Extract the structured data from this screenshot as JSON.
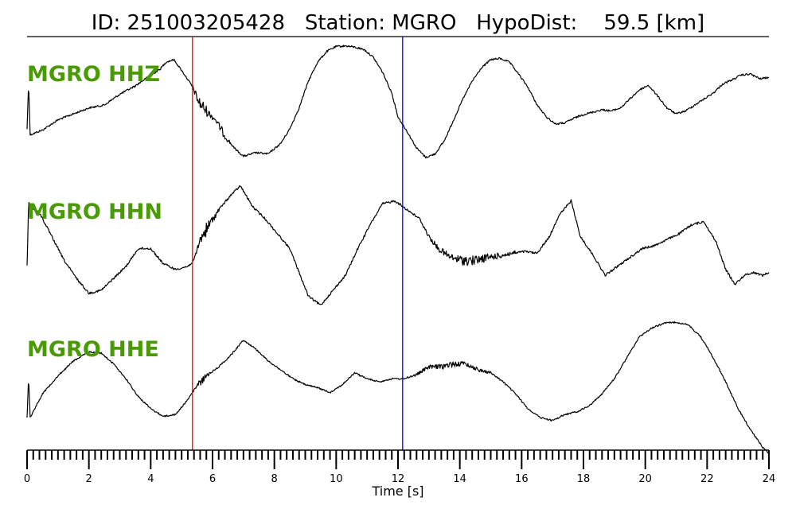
{
  "title": {
    "id_label": "ID:",
    "id_value": "251003205428",
    "station_label": "Station:",
    "station_value": "MGRO",
    "dist_label": "HypoDist:",
    "dist_value": "59.5",
    "dist_unit": "[km]"
  },
  "chart_data": {
    "type": "line",
    "xlabel": "Time [s]",
    "xlim": [
      0,
      24
    ],
    "x_ticks": [
      0,
      2,
      4,
      6,
      8,
      10,
      12,
      14,
      16,
      18,
      20,
      22,
      24
    ],
    "minor_tick_step": 0.2,
    "grid": false,
    "markers": [
      {
        "time": 5.35,
        "color": "#ff0000"
      },
      {
        "time": 12.15,
        "color": "#0000ff"
      }
    ],
    "label_color": "#4a9a06",
    "series": [
      {
        "name": "MGRO HHZ",
        "noise": 1.2,
        "points": [
          [
            0,
            -0.4
          ],
          [
            0.05,
            0.4
          ],
          [
            0.1,
            -0.5
          ],
          [
            0.5,
            -0.42
          ],
          [
            1.0,
            -0.25
          ],
          [
            1.5,
            -0.15
          ],
          [
            2.0,
            -0.05
          ],
          [
            2.5,
            0.0
          ],
          [
            3.0,
            0.18
          ],
          [
            3.5,
            0.32
          ],
          [
            4.0,
            0.5
          ],
          [
            4.3,
            0.6
          ],
          [
            4.5,
            0.72
          ],
          [
            4.75,
            0.76
          ],
          [
            5.0,
            0.58
          ],
          [
            5.3,
            0.35
          ],
          [
            5.4,
            0.25
          ],
          [
            5.55,
            0.05
          ],
          [
            5.8,
            -0.1
          ],
          [
            6.1,
            -0.25
          ],
          [
            6.4,
            -0.52
          ],
          [
            6.7,
            -0.72
          ],
          [
            7.0,
            -0.86
          ],
          [
            7.4,
            -0.8
          ],
          [
            7.8,
            -0.82
          ],
          [
            8.2,
            -0.65
          ],
          [
            8.5,
            -0.4
          ],
          [
            8.8,
            -0.05
          ],
          [
            9.1,
            0.4
          ],
          [
            9.4,
            0.72
          ],
          [
            9.7,
            0.9
          ],
          [
            10.0,
            0.98
          ],
          [
            10.3,
            0.99
          ],
          [
            10.6,
            0.97
          ],
          [
            10.9,
            0.93
          ],
          [
            11.2,
            0.8
          ],
          [
            11.5,
            0.55
          ],
          [
            11.8,
            0.2
          ],
          [
            12.0,
            -0.2
          ],
          [
            12.3,
            -0.45
          ],
          [
            12.6,
            -0.72
          ],
          [
            12.9,
            -0.88
          ],
          [
            13.2,
            -0.82
          ],
          [
            13.5,
            -0.6
          ],
          [
            13.8,
            -0.25
          ],
          [
            14.1,
            0.1
          ],
          [
            14.4,
            0.4
          ],
          [
            14.7,
            0.62
          ],
          [
            15.0,
            0.76
          ],
          [
            15.3,
            0.78
          ],
          [
            15.6,
            0.72
          ],
          [
            15.9,
            0.52
          ],
          [
            16.2,
            0.3
          ],
          [
            16.5,
            0.0
          ],
          [
            16.8,
            -0.2
          ],
          [
            17.1,
            -0.32
          ],
          [
            17.4,
            -0.3
          ],
          [
            17.7,
            -0.22
          ],
          [
            18.0,
            -0.16
          ],
          [
            18.3,
            -0.12
          ],
          [
            18.6,
            -0.08
          ],
          [
            18.9,
            -0.1
          ],
          [
            19.2,
            -0.05
          ],
          [
            19.5,
            0.1
          ],
          [
            19.8,
            0.25
          ],
          [
            20.1,
            0.33
          ],
          [
            20.4,
            0.15
          ],
          [
            20.7,
            -0.05
          ],
          [
            21.0,
            -0.15
          ],
          [
            21.3,
            -0.1
          ],
          [
            21.6,
            0.0
          ],
          [
            21.9,
            0.1
          ],
          [
            22.2,
            0.2
          ],
          [
            22.5,
            0.35
          ],
          [
            22.8,
            0.42
          ],
          [
            23.1,
            0.5
          ],
          [
            23.4,
            0.52
          ],
          [
            23.7,
            0.44
          ],
          [
            24.0,
            0.46
          ]
        ],
        "bursts": [
          [
            5.35,
            6.0,
            8
          ],
          [
            6.0,
            6.6,
            4
          ]
        ]
      },
      {
        "name": "MGRO HHN",
        "noise": 1.4,
        "points": [
          [
            0,
            -0.4
          ],
          [
            0.05,
            0.7
          ],
          [
            0.1,
            0.6
          ],
          [
            0.4,
            0.5
          ],
          [
            0.8,
            0.1
          ],
          [
            1.2,
            -0.3
          ],
          [
            1.6,
            -0.6
          ],
          [
            2.0,
            -0.85
          ],
          [
            2.4,
            -0.8
          ],
          [
            2.8,
            -0.6
          ],
          [
            3.2,
            -0.4
          ],
          [
            3.6,
            -0.1
          ],
          [
            4.0,
            -0.1
          ],
          [
            4.4,
            -0.35
          ],
          [
            4.8,
            -0.45
          ],
          [
            5.2,
            -0.4
          ],
          [
            5.4,
            -0.3
          ],
          [
            5.6,
            0.05
          ],
          [
            5.9,
            0.3
          ],
          [
            6.2,
            0.55
          ],
          [
            6.6,
            0.8
          ],
          [
            6.9,
            0.95
          ],
          [
            7.3,
            0.6
          ],
          [
            7.7,
            0.4
          ],
          [
            8.1,
            0.15
          ],
          [
            8.5,
            -0.1
          ],
          [
            8.8,
            -0.5
          ],
          [
            9.1,
            -0.9
          ],
          [
            9.5,
            -1.05
          ],
          [
            9.9,
            -0.8
          ],
          [
            10.3,
            -0.55
          ],
          [
            10.7,
            -0.1
          ],
          [
            11.1,
            0.3
          ],
          [
            11.5,
            0.65
          ],
          [
            11.9,
            0.7
          ],
          [
            12.3,
            0.55
          ],
          [
            12.7,
            0.4
          ],
          [
            13.0,
            0.1
          ],
          [
            13.3,
            -0.1
          ],
          [
            13.7,
            -0.25
          ],
          [
            14.1,
            -0.3
          ],
          [
            14.5,
            -0.3
          ],
          [
            14.9,
            -0.25
          ],
          [
            15.3,
            -0.22
          ],
          [
            15.7,
            -0.18
          ],
          [
            16.1,
            -0.15
          ],
          [
            16.5,
            -0.18
          ],
          [
            16.9,
            0.1
          ],
          [
            17.2,
            0.45
          ],
          [
            17.6,
            0.7
          ],
          [
            17.9,
            0.1
          ],
          [
            18.3,
            -0.2
          ],
          [
            18.7,
            -0.55
          ],
          [
            19.1,
            -0.4
          ],
          [
            19.5,
            -0.25
          ],
          [
            19.9,
            -0.1
          ],
          [
            20.3,
            -0.05
          ],
          [
            20.7,
            0.05
          ],
          [
            21.1,
            0.15
          ],
          [
            21.5,
            0.3
          ],
          [
            21.9,
            0.35
          ],
          [
            22.3,
            0.0
          ],
          [
            22.6,
            -0.45
          ],
          [
            22.9,
            -0.7
          ],
          [
            23.2,
            -0.55
          ],
          [
            23.5,
            -0.5
          ],
          [
            23.8,
            -0.55
          ],
          [
            24.0,
            -0.5
          ]
        ],
        "bursts": [
          [
            5.4,
            6.2,
            7
          ],
          [
            12.8,
            15.8,
            5
          ]
        ]
      },
      {
        "name": "MGRO HHE",
        "noise": 1.0,
        "points": [
          [
            0,
            -0.6
          ],
          [
            0.05,
            0.1
          ],
          [
            0.1,
            -0.6
          ],
          [
            0.5,
            -0.2
          ],
          [
            1.0,
            0.1
          ],
          [
            1.5,
            0.35
          ],
          [
            2.0,
            0.5
          ],
          [
            2.4,
            0.48
          ],
          [
            2.8,
            0.3
          ],
          [
            3.2,
            0.05
          ],
          [
            3.6,
            -0.25
          ],
          [
            4.0,
            -0.45
          ],
          [
            4.4,
            -0.58
          ],
          [
            4.8,
            -0.55
          ],
          [
            5.2,
            -0.3
          ],
          [
            5.45,
            -0.1
          ],
          [
            5.8,
            0.1
          ],
          [
            6.2,
            0.25
          ],
          [
            6.6,
            0.45
          ],
          [
            7.0,
            0.7
          ],
          [
            7.4,
            0.55
          ],
          [
            7.8,
            0.35
          ],
          [
            8.2,
            0.2
          ],
          [
            8.6,
            0.05
          ],
          [
            9.0,
            -0.05
          ],
          [
            9.4,
            -0.1
          ],
          [
            9.8,
            -0.18
          ],
          [
            10.2,
            -0.05
          ],
          [
            10.6,
            0.15
          ],
          [
            11.0,
            0.05
          ],
          [
            11.4,
            0.0
          ],
          [
            11.8,
            0.05
          ],
          [
            12.2,
            0.05
          ],
          [
            12.6,
            0.12
          ],
          [
            13.0,
            0.25
          ],
          [
            13.4,
            0.25
          ],
          [
            13.8,
            0.3
          ],
          [
            14.2,
            0.3
          ],
          [
            14.6,
            0.2
          ],
          [
            15.0,
            0.15
          ],
          [
            15.4,
            0.0
          ],
          [
            15.8,
            -0.2
          ],
          [
            16.2,
            -0.45
          ],
          [
            16.6,
            -0.6
          ],
          [
            17.0,
            -0.65
          ],
          [
            17.4,
            -0.55
          ],
          [
            17.8,
            -0.5
          ],
          [
            18.2,
            -0.4
          ],
          [
            18.6,
            -0.2
          ],
          [
            19.0,
            0.05
          ],
          [
            19.4,
            0.4
          ],
          [
            19.8,
            0.75
          ],
          [
            20.2,
            0.9
          ],
          [
            20.6,
            0.98
          ],
          [
            21.0,
            1.0
          ],
          [
            21.4,
            0.95
          ],
          [
            21.8,
            0.75
          ],
          [
            22.2,
            0.4
          ],
          [
            22.6,
            0.0
          ],
          [
            23.0,
            -0.45
          ],
          [
            23.4,
            -0.8
          ],
          [
            23.8,
            -1.1
          ],
          [
            24.0,
            -1.2
          ]
        ],
        "bursts": [
          [
            5.35,
            5.9,
            4
          ],
          [
            12.5,
            15.0,
            3
          ]
        ]
      }
    ]
  }
}
